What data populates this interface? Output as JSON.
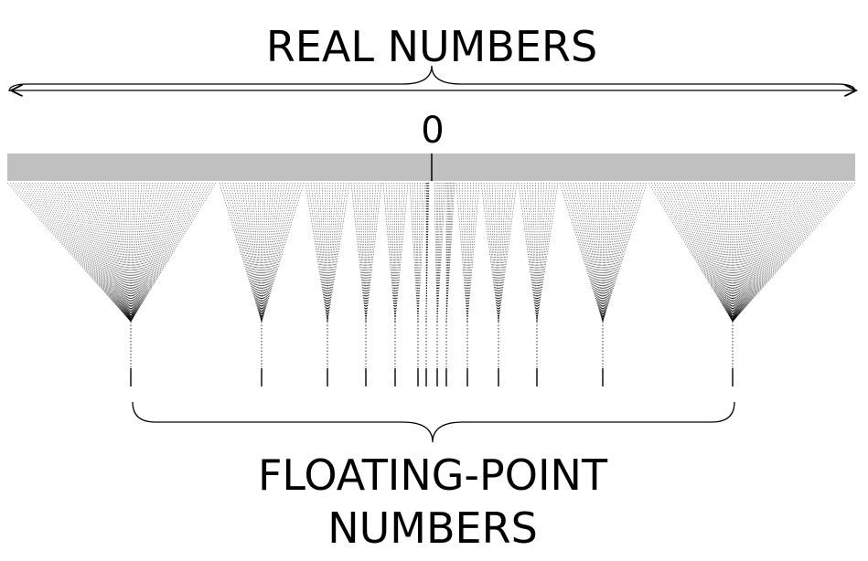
{
  "labels": {
    "top": "REAL NUMBERS",
    "zero": "0",
    "bottom_line1": "FLOATING-POINT",
    "bottom_line2": "NUMBERS"
  },
  "colors": {
    "real_line_band": "#c0c0c0",
    "ink": "#000000"
  }
}
